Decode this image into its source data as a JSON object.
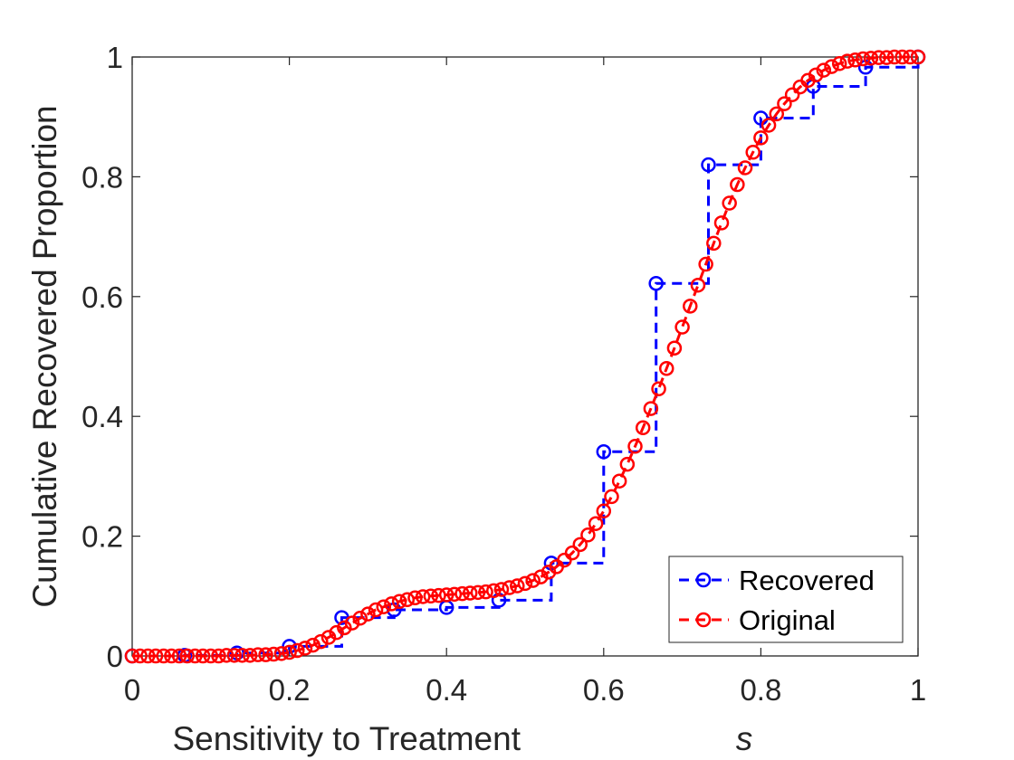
{
  "chart_data": {
    "type": "line",
    "xlabel": "Sensitivity to Treatment",
    "xlabel_var": "s",
    "ylabel": "Cumulative Recovered Proportion",
    "xlim": [
      0,
      1
    ],
    "ylim": [
      0,
      1
    ],
    "xticks": [
      "0",
      "0.2",
      "0.4",
      "0.6",
      "0.8",
      "1"
    ],
    "yticks": [
      "0",
      "0.2",
      "0.4",
      "0.6",
      "0.8",
      "1"
    ],
    "grid": false,
    "legend_position": "bottom-right",
    "series": [
      {
        "name": "Recovered",
        "color": "#0000ff",
        "line_style": "dashed-step",
        "marker": "circle",
        "x": [
          0.0,
          0.0667,
          0.1333,
          0.2,
          0.2667,
          0.3333,
          0.4,
          0.4667,
          0.5333,
          0.6,
          0.6667,
          0.7333,
          0.8,
          0.8667,
          0.9333,
          1.0
        ],
        "y": [
          0.0,
          0.001,
          0.005,
          0.016,
          0.064,
          0.077,
          0.081,
          0.093,
          0.155,
          0.341,
          0.622,
          0.82,
          0.898,
          0.951,
          0.983,
          1.0
        ]
      },
      {
        "name": "Original",
        "color": "#ff0000",
        "line_style": "dashed",
        "marker": "circle",
        "x": [
          0.0,
          0.01,
          0.02,
          0.03,
          0.04,
          0.05,
          0.06,
          0.07,
          0.08,
          0.09,
          0.1,
          0.11,
          0.12,
          0.13,
          0.14,
          0.15,
          0.16,
          0.17,
          0.18,
          0.19,
          0.2,
          0.21,
          0.22,
          0.23,
          0.24,
          0.25,
          0.26,
          0.27,
          0.28,
          0.29,
          0.3,
          0.31,
          0.32,
          0.33,
          0.34,
          0.35,
          0.36,
          0.37,
          0.38,
          0.39,
          0.4,
          0.41,
          0.42,
          0.43,
          0.44,
          0.45,
          0.46,
          0.47,
          0.48,
          0.49,
          0.5,
          0.51,
          0.52,
          0.53,
          0.54,
          0.55,
          0.56,
          0.57,
          0.58,
          0.59,
          0.6,
          0.61,
          0.62,
          0.63,
          0.64,
          0.65,
          0.66,
          0.67,
          0.68,
          0.69,
          0.7,
          0.71,
          0.72,
          0.73,
          0.74,
          0.75,
          0.76,
          0.77,
          0.78,
          0.79,
          0.8,
          0.81,
          0.82,
          0.83,
          0.84,
          0.85,
          0.86,
          0.87,
          0.88,
          0.89,
          0.9,
          0.91,
          0.92,
          0.93,
          0.94,
          0.95,
          0.96,
          0.97,
          0.98,
          0.99,
          1.0
        ],
        "y": [
          0.0,
          0.0,
          0.0,
          0.0,
          0.0,
          0.0,
          0.0,
          0.0,
          0.0,
          0.0,
          0.0,
          0.0,
          0.001,
          0.001,
          0.001,
          0.001,
          0.002,
          0.002,
          0.003,
          0.004,
          0.006,
          0.009,
          0.013,
          0.018,
          0.024,
          0.031,
          0.039,
          0.047,
          0.055,
          0.063,
          0.07,
          0.077,
          0.082,
          0.087,
          0.091,
          0.094,
          0.097,
          0.099,
          0.1,
          0.101,
          0.102,
          0.103,
          0.104,
          0.105,
          0.106,
          0.107,
          0.109,
          0.111,
          0.114,
          0.117,
          0.121,
          0.126,
          0.132,
          0.14,
          0.149,
          0.16,
          0.172,
          0.186,
          0.202,
          0.221,
          0.242,
          0.266,
          0.292,
          0.32,
          0.35,
          0.381,
          0.413,
          0.446,
          0.48,
          0.514,
          0.549,
          0.584,
          0.619,
          0.654,
          0.689,
          0.723,
          0.756,
          0.787,
          0.815,
          0.841,
          0.865,
          0.886,
          0.905,
          0.922,
          0.937,
          0.95,
          0.961,
          0.97,
          0.978,
          0.984,
          0.989,
          0.993,
          0.995,
          0.997,
          0.998,
          0.999,
          0.999,
          1.0,
          1.0,
          1.0,
          1.0
        ]
      }
    ]
  }
}
